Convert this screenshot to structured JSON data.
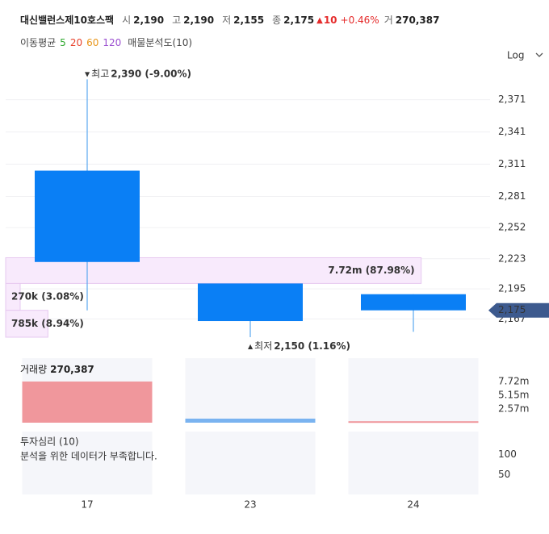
{
  "chart_data": {
    "type": "candlestick",
    "title": "대신밸런스제10호스팩",
    "quotes": [
      {
        "label": "시",
        "value": "2,190"
      },
      {
        "label": "고",
        "value": "2,190"
      },
      {
        "label": "저",
        "value": "2,155"
      },
      {
        "label": "종",
        "value": "2,175"
      }
    ],
    "change": {
      "arrow": "▲",
      "value": "10",
      "percent": "+0.46%",
      "color": "#e52b2b"
    },
    "volume_quote": {
      "label": "거",
      "value": "270,387"
    },
    "moving_average": {
      "label": "이동평균",
      "items": [
        {
          "name": "5",
          "color": "#2ea82e"
        },
        {
          "name": "20",
          "color": "#e8402a"
        },
        {
          "name": "60",
          "color": "#e8961a"
        },
        {
          "name": "120",
          "color": "#9b4fd0"
        }
      ]
    },
    "volume_profile_label": "매물분석도(10)",
    "scale_selector": "Log",
    "categories": [
      "17",
      "23",
      "24"
    ],
    "open": [
      2305,
      2200,
      2190
    ],
    "high": [
      2390,
      2200,
      2190
    ],
    "low": [
      2175,
      2150,
      2155
    ],
    "close": [
      2220,
      2165,
      2175
    ],
    "color": "#0a7ff5",
    "wick_color": "#5aa8f0",
    "ylim": [
      2141,
      2400
    ],
    "yticks": [
      {
        "value": 2371,
        "label": "2,371"
      },
      {
        "value": 2341,
        "label": "2,341"
      },
      {
        "value": 2311,
        "label": "2,311"
      },
      {
        "value": 2281,
        "label": "2,281"
      },
      {
        "value": 2252,
        "label": "2,252"
      },
      {
        "value": 2223,
        "label": "2,223"
      },
      {
        "value": 2195,
        "label": "2,195"
      },
      {
        "value": 2167,
        "label": "2,167"
      }
    ],
    "grid": true,
    "current_price": {
      "value": 2175,
      "label": "2,175",
      "color": "#3d5a8e"
    },
    "annotations": [
      {
        "marker": "▼",
        "label": "최고",
        "value": "2,390 (-9.00%)",
        "at": "high",
        "index": 0
      },
      {
        "marker": "▲",
        "label": "최저",
        "value": "2,150 (1.16%)",
        "at": "low",
        "index": 1
      }
    ],
    "volume_profile": {
      "price_edges": [
        2224,
        2200,
        2175,
        2150
      ],
      "values": [
        7720000,
        270000,
        785000
      ],
      "value_labels": [
        "7.72m (87.98%)",
        "270k (3.08%)",
        "785k (8.94%)"
      ],
      "xlim": [
        0,
        9000000
      ],
      "color": "#f8eafc",
      "border_color": "#e6c8f0"
    },
    "volume": {
      "label": "거래량",
      "value_text": "270,387",
      "values": [
        7720000,
        760000,
        270387
      ],
      "colors": [
        "#f0979c",
        "#7ab3f0",
        "#f0979c"
      ],
      "ylim": [
        0,
        12100000
      ],
      "yticks": [
        {
          "value": 7720000,
          "label": "7.72m"
        },
        {
          "value": 5150000,
          "label": "5.15m"
        },
        {
          "value": 2570000,
          "label": "2.57m"
        }
      ]
    },
    "sentiment": {
      "label": "투자심리 (10)",
      "note": "분석을 위한 데이터가 부족합니다.",
      "ylim": [
        0,
        156
      ],
      "yticks": [
        100,
        50
      ]
    }
  }
}
